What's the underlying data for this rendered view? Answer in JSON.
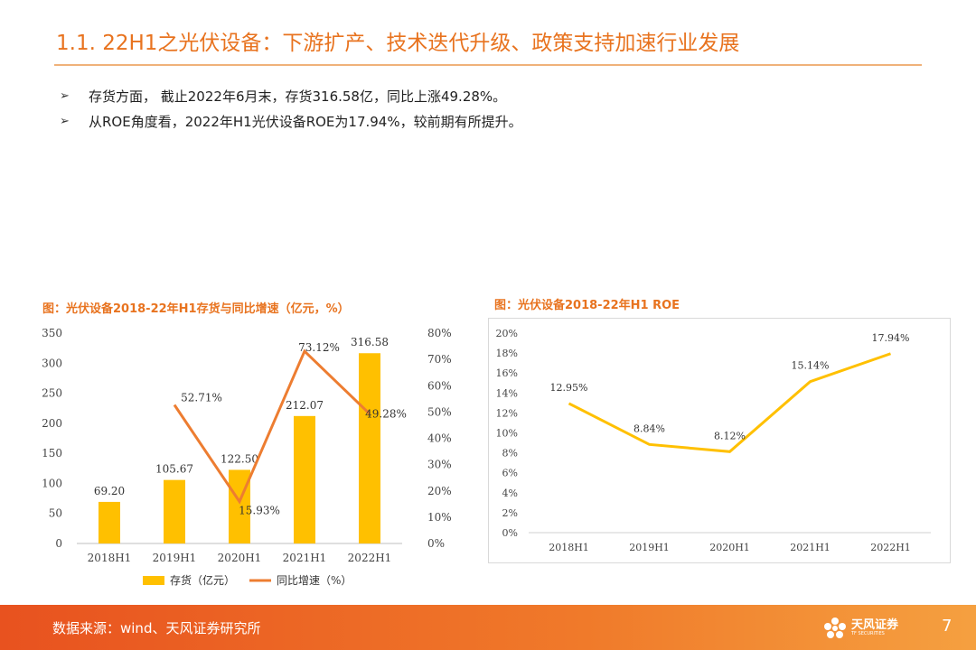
{
  "page": {
    "title": "1.1. 22H1之光伏设备：下游扩产、技术迭代升级、政策支持加速行业发展",
    "bullet_mark": "➢",
    "bullets": [
      "存货方面， 截止2022年6月末，存货316.58亿，同比上涨49.28%。",
      "从ROE角度看，2022年H1光伏设备ROE为17.94%，较前期有所提升。"
    ],
    "footer_source": "数据来源：wind、天风证券研究所",
    "logo_text": "天风证券",
    "logo_sub": "TF SECURITIES",
    "page_number": "7",
    "colors": {
      "accent": "#E8731F",
      "bar": "#FFC000",
      "line": "#ED7D31",
      "roe_line": "#FFC000"
    }
  },
  "chart_data": [
    {
      "type": "bar",
      "title": "图：光伏设备2018-22年H1存货与同比增速（亿元，%）",
      "categories": [
        "2018H1",
        "2019H1",
        "2020H1",
        "2021H1",
        "2022H1"
      ],
      "series": [
        {
          "name": "存货（亿元）",
          "type": "bar",
          "axis": "left",
          "values": [
            69.2,
            105.67,
            122.5,
            212.07,
            316.58
          ],
          "labels": [
            "69.20",
            "105.67",
            "122.50",
            "212.07",
            "316.58"
          ]
        },
        {
          "name": "同比增速（%）",
          "type": "line",
          "axis": "right",
          "values": [
            null,
            52.71,
            15.93,
            73.12,
            49.28
          ],
          "labels": [
            "",
            "52.71%",
            "15.93%",
            "73.12%",
            "49.28%"
          ]
        }
      ],
      "y_left": {
        "ylim": [
          0,
          350
        ],
        "ticks": [
          0,
          50,
          100,
          150,
          200,
          250,
          300,
          350
        ]
      },
      "y_right": {
        "ylim": [
          0,
          80
        ],
        "ticks": [
          "0%",
          "10%",
          "20%",
          "30%",
          "40%",
          "50%",
          "60%",
          "70%",
          "80%"
        ]
      },
      "legend": [
        "存货（亿元）",
        "同比增速（%）"
      ],
      "legend_position": "bottom"
    },
    {
      "type": "line",
      "title": "图：光伏设备2018-22年H1 ROE",
      "categories": [
        "2018H1",
        "2019H1",
        "2020H1",
        "2021H1",
        "2022H1"
      ],
      "series": [
        {
          "name": "ROE",
          "values": [
            12.95,
            8.84,
            8.12,
            15.14,
            17.94
          ],
          "labels": [
            "12.95%",
            "8.84%",
            "8.12%",
            "15.14%",
            "17.94%"
          ]
        }
      ],
      "ylim": [
        0,
        20
      ],
      "y_ticks": [
        "0%",
        "2%",
        "4%",
        "6%",
        "8%",
        "10%",
        "12%",
        "14%",
        "16%",
        "18%",
        "20%"
      ],
      "grid": false
    }
  ]
}
